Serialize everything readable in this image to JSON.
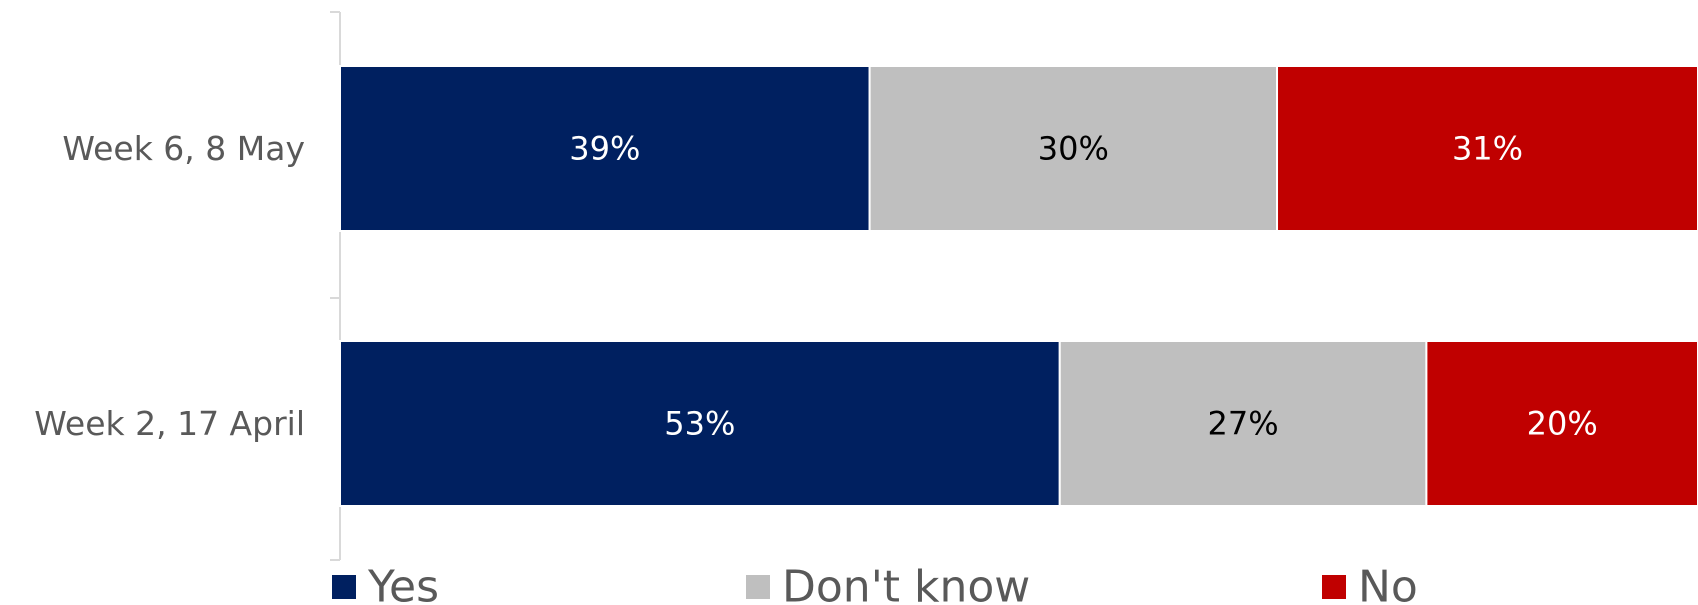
{
  "chart_data": {
    "type": "bar",
    "orientation": "horizontal",
    "stacked": true,
    "categories": [
      "Week 6, 8 May",
      "Week 2, 17 April"
    ],
    "series": [
      {
        "name": "Yes",
        "values": [
          39,
          53
        ],
        "labels": [
          "39%",
          "53%"
        ],
        "color": "#002060",
        "label_color": "#ffffff"
      },
      {
        "name": "Don't know",
        "values": [
          30,
          27
        ],
        "labels": [
          "30%",
          "27%"
        ],
        "color": "#bfbfbf",
        "label_color": "#000000"
      },
      {
        "name": "No",
        "values": [
          31,
          20
        ],
        "labels": [
          "31%",
          "20%"
        ],
        "color": "#c00000",
        "label_color": "#ffffff"
      }
    ],
    "xlim": [
      0,
      100
    ],
    "grid": false,
    "legend_position": "bottom"
  }
}
